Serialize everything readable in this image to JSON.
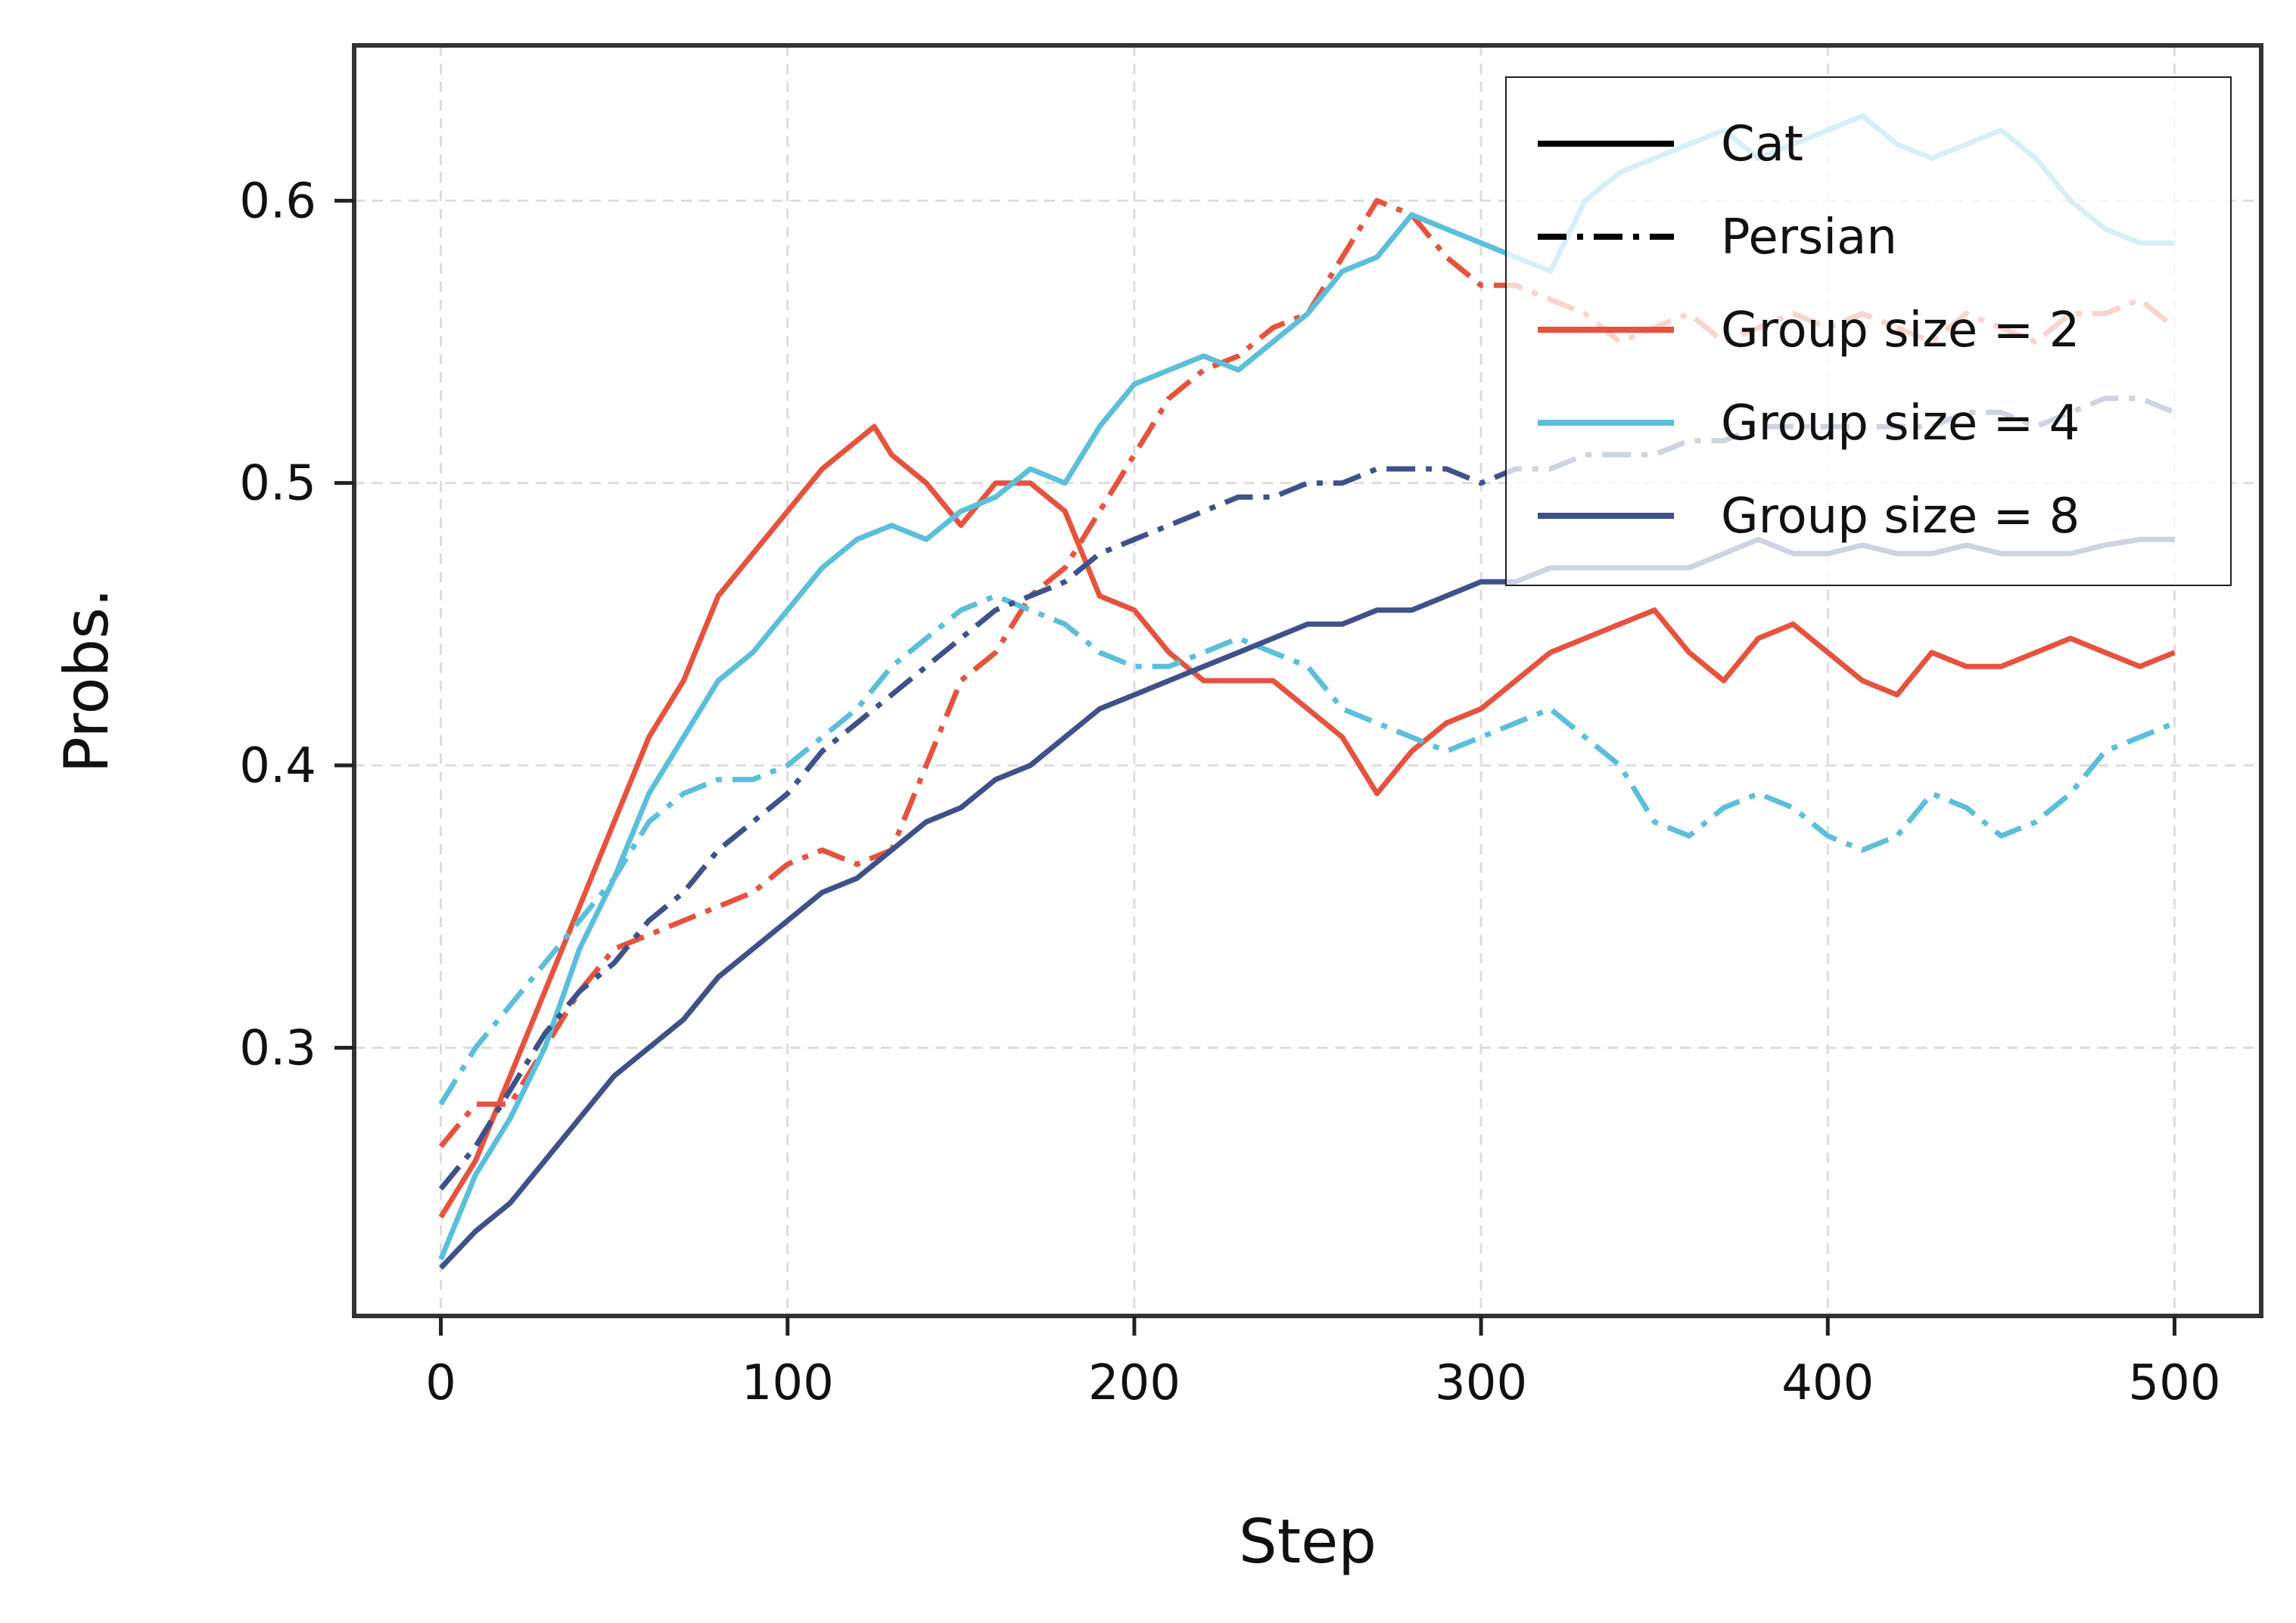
{
  "chart_data": {
    "type": "line",
    "title": "",
    "xlabel": "Step",
    "ylabel": "Probs.",
    "xlim": [
      -25,
      525
    ],
    "ylim": [
      0.205,
      0.655
    ],
    "xticks": [
      0,
      100,
      200,
      300,
      400,
      500
    ],
    "xtick_labels": [
      "0",
      "100",
      "200",
      "300",
      "400",
      "500"
    ],
    "yticks": [
      0.3,
      0.4,
      0.5,
      0.6
    ],
    "ytick_labels": [
      "0.3",
      "0.4",
      "0.5",
      "0.6"
    ],
    "grid": true,
    "legend_position": "top-right",
    "legend": [
      {
        "label": "Cat",
        "style": "solid",
        "color": "#000000"
      },
      {
        "label": "Persian",
        "style": "dashdot",
        "color": "#000000"
      },
      {
        "label": "Group size = 2",
        "style": "solid",
        "color": "#E5533F"
      },
      {
        "label": "Group size = 4",
        "style": "solid",
        "color": "#5BBFDA"
      },
      {
        "label": "Group size = 8",
        "style": "solid",
        "color": "#3F5189"
      }
    ],
    "series": [
      {
        "name": "Group size = 2 (Cat)",
        "group": "Group size = 2",
        "style": "solid",
        "color": "#E5533F",
        "x": [
          0,
          10,
          20,
          30,
          40,
          50,
          60,
          70,
          80,
          90,
          100,
          110,
          120,
          125,
          130,
          140,
          150,
          160,
          170,
          180,
          190,
          200,
          210,
          220,
          230,
          240,
          250,
          260,
          270,
          280,
          290,
          300,
          310,
          320,
          330,
          340,
          350,
          360,
          370,
          380,
          390,
          400,
          410,
          420,
          430,
          440,
          450,
          460,
          470,
          480,
          490,
          500
        ],
        "y": [
          0.24,
          0.26,
          0.29,
          0.32,
          0.35,
          0.38,
          0.41,
          0.43,
          0.46,
          0.475,
          0.49,
          0.505,
          0.515,
          0.52,
          0.51,
          0.5,
          0.485,
          0.5,
          0.5,
          0.49,
          0.46,
          0.455,
          0.44,
          0.43,
          0.43,
          0.43,
          0.42,
          0.41,
          0.39,
          0.405,
          0.415,
          0.42,
          0.43,
          0.44,
          0.445,
          0.45,
          0.455,
          0.44,
          0.43,
          0.445,
          0.45,
          0.44,
          0.43,
          0.425,
          0.44,
          0.435,
          0.435,
          0.44,
          0.445,
          0.44,
          0.435,
          0.44
        ]
      },
      {
        "name": "Group size = 2 (Persian)",
        "group": "Group size = 2",
        "style": "dashdot",
        "color": "#E5533F",
        "x": [
          0,
          10,
          20,
          30,
          40,
          50,
          60,
          70,
          80,
          90,
          100,
          110,
          120,
          130,
          140,
          150,
          160,
          170,
          180,
          190,
          200,
          210,
          220,
          230,
          240,
          250,
          260,
          270,
          280,
          290,
          300,
          310,
          320,
          330,
          340,
          350,
          360,
          370,
          380,
          390,
          400,
          410,
          420,
          430,
          440,
          450,
          460,
          470,
          480,
          490,
          500
        ],
        "y": [
          0.265,
          0.28,
          0.28,
          0.3,
          0.32,
          0.335,
          0.34,
          0.345,
          0.35,
          0.355,
          0.365,
          0.37,
          0.365,
          0.37,
          0.4,
          0.43,
          0.44,
          0.46,
          0.47,
          0.49,
          0.51,
          0.53,
          0.54,
          0.545,
          0.555,
          0.56,
          0.58,
          0.6,
          0.595,
          0.58,
          0.57,
          0.57,
          0.565,
          0.56,
          0.55,
          0.555,
          0.56,
          0.55,
          0.555,
          0.56,
          0.555,
          0.56,
          0.555,
          0.55,
          0.56,
          0.555,
          0.55,
          0.56,
          0.56,
          0.565,
          0.555
        ]
      },
      {
        "name": "Group size = 4 (Cat)",
        "group": "Group size = 4",
        "style": "solid",
        "color": "#5BBFDA",
        "x": [
          0,
          10,
          20,
          30,
          40,
          50,
          60,
          70,
          80,
          90,
          100,
          110,
          120,
          130,
          140,
          150,
          160,
          170,
          180,
          190,
          200,
          210,
          220,
          230,
          240,
          250,
          260,
          270,
          280,
          290,
          300,
          310,
          320,
          330,
          340,
          350,
          360,
          370,
          380,
          390,
          400,
          410,
          420,
          430,
          440,
          450,
          460,
          470,
          480,
          490,
          500
        ],
        "y": [
          0.225,
          0.255,
          0.275,
          0.3,
          0.335,
          0.36,
          0.39,
          0.41,
          0.43,
          0.44,
          0.455,
          0.47,
          0.48,
          0.485,
          0.48,
          0.49,
          0.495,
          0.505,
          0.5,
          0.52,
          0.535,
          0.54,
          0.545,
          0.54,
          0.55,
          0.56,
          0.575,
          0.58,
          0.595,
          0.59,
          0.585,
          0.58,
          0.575,
          0.6,
          0.61,
          0.615,
          0.62,
          0.625,
          0.615,
          0.62,
          0.625,
          0.63,
          0.62,
          0.615,
          0.62,
          0.625,
          0.615,
          0.6,
          0.59,
          0.585,
          0.585
        ]
      },
      {
        "name": "Group size = 4 (Persian)",
        "group": "Group size = 4",
        "style": "dashdot",
        "color": "#5BBFDA",
        "x": [
          0,
          10,
          20,
          30,
          40,
          50,
          60,
          70,
          80,
          90,
          100,
          110,
          120,
          130,
          140,
          150,
          160,
          170,
          180,
          190,
          200,
          210,
          220,
          230,
          240,
          250,
          260,
          270,
          280,
          290,
          300,
          310,
          320,
          330,
          340,
          350,
          360,
          370,
          380,
          390,
          400,
          410,
          420,
          430,
          440,
          450,
          460,
          470,
          480,
          490,
          500
        ],
        "y": [
          0.28,
          0.3,
          0.315,
          0.33,
          0.345,
          0.36,
          0.38,
          0.39,
          0.395,
          0.395,
          0.4,
          0.41,
          0.42,
          0.435,
          0.445,
          0.455,
          0.46,
          0.455,
          0.45,
          0.44,
          0.435,
          0.435,
          0.44,
          0.445,
          0.44,
          0.435,
          0.42,
          0.415,
          0.41,
          0.405,
          0.41,
          0.415,
          0.42,
          0.41,
          0.4,
          0.38,
          0.375,
          0.385,
          0.39,
          0.385,
          0.375,
          0.37,
          0.375,
          0.39,
          0.385,
          0.375,
          0.38,
          0.39,
          0.405,
          0.41,
          0.415
        ]
      },
      {
        "name": "Group size = 8 (Cat)",
        "group": "Group size = 8",
        "style": "solid",
        "color": "#3F5189",
        "x": [
          0,
          10,
          20,
          30,
          40,
          50,
          60,
          70,
          80,
          90,
          100,
          110,
          120,
          130,
          140,
          150,
          160,
          170,
          180,
          190,
          200,
          210,
          220,
          230,
          240,
          250,
          260,
          270,
          280,
          290,
          300,
          310,
          320,
          330,
          340,
          350,
          360,
          370,
          380,
          390,
          400,
          410,
          420,
          430,
          440,
          450,
          460,
          470,
          480,
          490,
          500
        ],
        "y": [
          0.222,
          0.235,
          0.245,
          0.26,
          0.275,
          0.29,
          0.3,
          0.31,
          0.325,
          0.335,
          0.345,
          0.355,
          0.36,
          0.37,
          0.38,
          0.385,
          0.395,
          0.4,
          0.41,
          0.42,
          0.425,
          0.43,
          0.435,
          0.44,
          0.445,
          0.45,
          0.45,
          0.455,
          0.455,
          0.46,
          0.465,
          0.465,
          0.47,
          0.47,
          0.47,
          0.47,
          0.47,
          0.475,
          0.48,
          0.475,
          0.475,
          0.478,
          0.475,
          0.475,
          0.478,
          0.475,
          0.475,
          0.475,
          0.478,
          0.48,
          0.48
        ]
      },
      {
        "name": "Group size = 8 (Persian)",
        "group": "Group size = 8",
        "style": "dashdot",
        "color": "#3F5189",
        "x": [
          0,
          10,
          20,
          30,
          40,
          50,
          60,
          70,
          80,
          90,
          100,
          110,
          120,
          130,
          140,
          150,
          160,
          170,
          180,
          190,
          200,
          210,
          220,
          230,
          240,
          250,
          260,
          270,
          280,
          290,
          300,
          310,
          320,
          330,
          340,
          350,
          360,
          370,
          380,
          390,
          400,
          410,
          420,
          430,
          440,
          450,
          460,
          470,
          480,
          490,
          500
        ],
        "y": [
          0.25,
          0.265,
          0.285,
          0.305,
          0.32,
          0.33,
          0.345,
          0.355,
          0.37,
          0.38,
          0.39,
          0.405,
          0.415,
          0.425,
          0.435,
          0.445,
          0.455,
          0.46,
          0.465,
          0.475,
          0.48,
          0.485,
          0.49,
          0.495,
          0.495,
          0.5,
          0.5,
          0.505,
          0.505,
          0.505,
          0.5,
          0.505,
          0.505,
          0.51,
          0.51,
          0.51,
          0.515,
          0.515,
          0.52,
          0.52,
          0.52,
          0.52,
          0.52,
          0.52,
          0.525,
          0.525,
          0.52,
          0.525,
          0.53,
          0.53,
          0.525
        ]
      }
    ]
  }
}
